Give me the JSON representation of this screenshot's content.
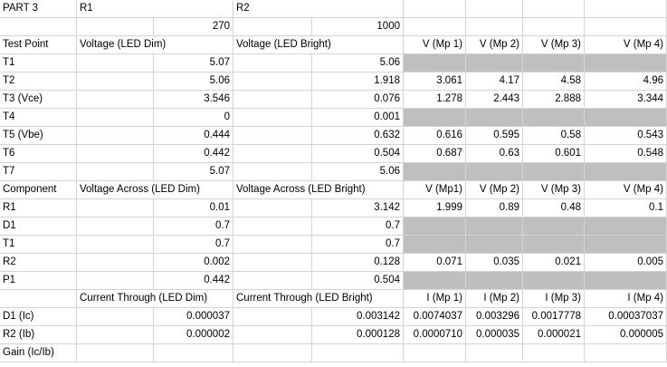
{
  "sheet": {
    "fill_color": "#bfbfbf",
    "grid_color": "#d4d4d4",
    "rows": [
      [
        "PART 3",
        "R1",
        "",
        "R2",
        "",
        "",
        "",
        ""
      ],
      [
        "",
        "",
        "270",
        "",
        "1000",
        "",
        "",
        ""
      ],
      [
        "Test Point",
        "Voltage (LED Dim)",
        "",
        "Voltage (LED Bright)",
        "",
        "V (Mp 1)",
        "V (Mp 2)",
        "V (Mp 3)",
        "V (Mp 4)"
      ],
      [
        "T1",
        "",
        "5.07",
        "",
        "5.06",
        "",
        "",
        "",
        ""
      ],
      [
        "T2",
        "",
        "5.06",
        "",
        "1.918",
        "3.061",
        "4.17",
        "4.58",
        "4.96"
      ],
      [
        "T3 (Vce)",
        "",
        "3.546",
        "",
        "0.076",
        "1.278",
        "2.443",
        "2.888",
        "3.344"
      ],
      [
        "T4",
        "",
        "0",
        "",
        "0.001",
        "",
        "",
        "",
        ""
      ],
      [
        "T5 (Vbe)",
        "",
        "0.444",
        "",
        "0.632",
        "0.616",
        "0.595",
        "0.58",
        "0.543"
      ],
      [
        "T6",
        "",
        "0.442",
        "",
        "0.504",
        "0.687",
        "0.63",
        "0.601",
        "0.548"
      ],
      [
        "T7",
        "",
        "5.07",
        "",
        "5.06",
        "",
        "",
        "",
        ""
      ],
      [
        "Component",
        "Voltage Across (LED Dim)",
        "",
        "Voltage Across  (LED Bright)",
        "",
        "V (Mp1)",
        "V (Mp 2)",
        "V (Mp 3)",
        "V (Mp 4)"
      ],
      [
        "R1",
        "",
        "0.01",
        "",
        "3.142",
        "1.999",
        "0.89",
        "0.48",
        "0.1"
      ],
      [
        "D1",
        "",
        "0.7",
        "",
        "0.7",
        "",
        "",
        "",
        ""
      ],
      [
        "T1",
        "",
        "0.7",
        "",
        "0.7",
        "",
        "",
        "",
        ""
      ],
      [
        "R2",
        "",
        "0.002",
        "",
        "0.128",
        "0.071",
        "0.035",
        "0.021",
        "0.005"
      ],
      [
        "P1",
        "",
        "0.442",
        "",
        "0.504",
        "",
        "",
        "",
        ""
      ],
      [
        "",
        "Current Through (LED Dim)",
        "",
        "Current Through (LED Bright)",
        "",
        "I (Mp 1)",
        "I (Mp 2)",
        "I (Mp 3)",
        "I (Mp 4)"
      ],
      [
        "D1 (Ic)",
        "",
        "0.000037",
        "",
        "0.003142",
        "0.0074037",
        "0.003296",
        "0.0017778",
        "0.00037037"
      ],
      [
        "R2 (Ib)",
        "",
        "0.000002",
        "",
        "0.000128",
        "0.0000710",
        "0.000035",
        "0.000021",
        "0.000005"
      ],
      [
        "Gain (Ic/Ib)",
        "",
        "",
        "",
        "",
        "",
        "",
        "",
        ""
      ]
    ]
  }
}
